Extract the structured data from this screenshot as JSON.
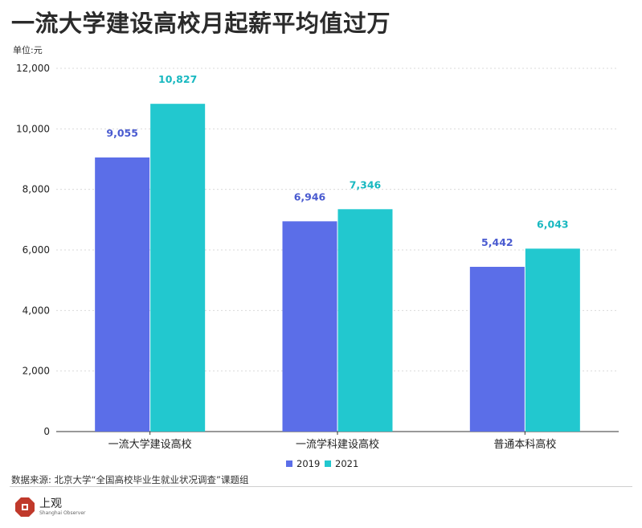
{
  "title": "一流大学建设高校月起薪平均值过万",
  "unit_label": "单位:元",
  "source": "数据来源: 北京大学“全国高校毕业生就业状况调查”课题组",
  "logo": {
    "name": "上观",
    "subtitle": "Shanghai Observer",
    "icon": "shanghai-observer-seal-icon"
  },
  "colors": {
    "series_2019": "#5b6ee8",
    "series_2021": "#22c8cf",
    "label_2019": "#4a5bd0",
    "label_2021": "#18b8c0",
    "accent": "#c0392b"
  },
  "chart_data": {
    "type": "bar",
    "title": "一流大学建设高校月起薪平均值过万",
    "ylabel": "单位:元",
    "xlabel": "",
    "categories": [
      "一流大学建设高校",
      "一流学科建设高校",
      "普通本科高校"
    ],
    "series": [
      {
        "name": "2019",
        "values": [
          9055,
          6946,
          5442
        ],
        "labels": [
          "9,055",
          "6,946",
          "5,442"
        ]
      },
      {
        "name": "2021",
        "values": [
          10827,
          7346,
          6043
        ],
        "labels": [
          "10,827",
          "7,346",
          "6,043"
        ]
      }
    ],
    "ylim": [
      0,
      12000
    ],
    "yticks": [
      0,
      2000,
      4000,
      6000,
      8000,
      10000,
      12000
    ],
    "ytick_labels": [
      "0",
      "2,000",
      "4,000",
      "6,000",
      "8,000",
      "10,000",
      "12,000"
    ],
    "grid": true,
    "legend": "bottom-center"
  }
}
